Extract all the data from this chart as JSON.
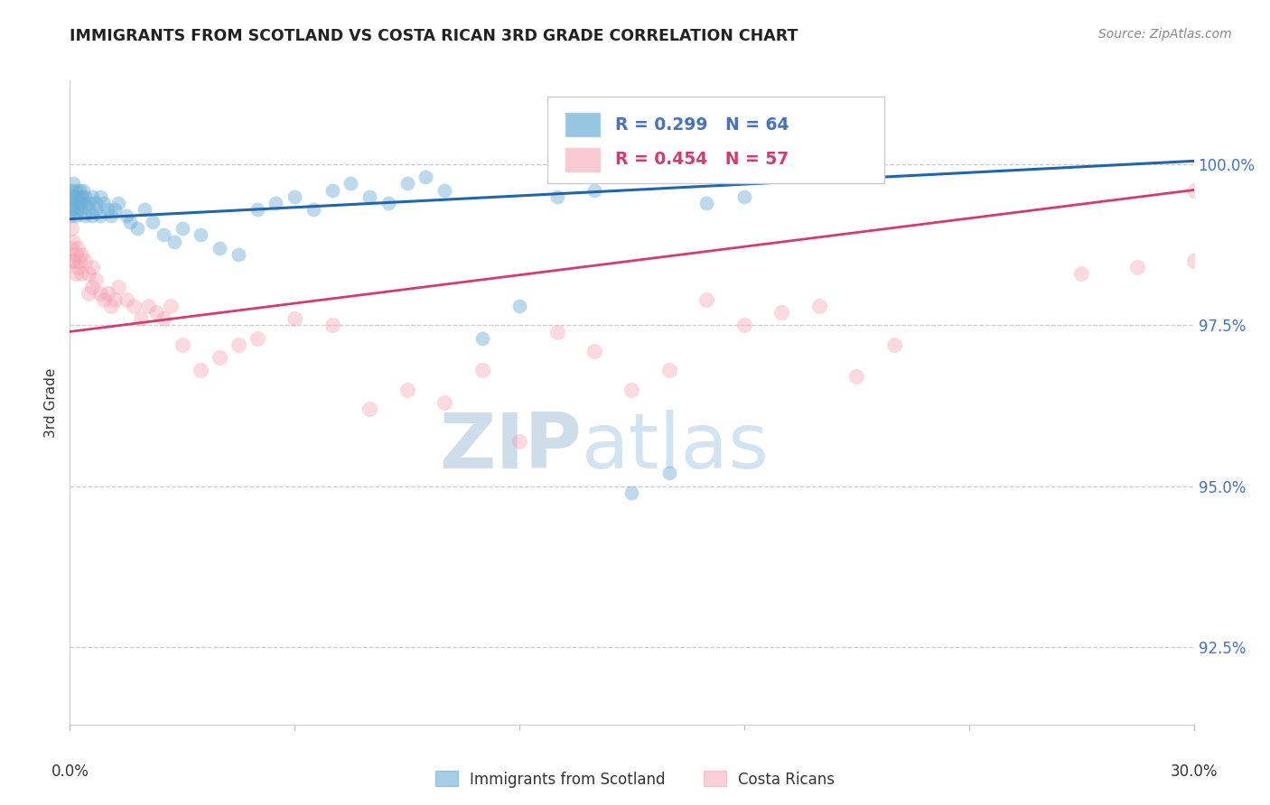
{
  "title": "IMMIGRANTS FROM SCOTLAND VS COSTA RICAN 3RD GRADE CORRELATION CHART",
  "source": "Source: ZipAtlas.com",
  "ylabel": "3rd Grade",
  "yticks": [
    92.5,
    95.0,
    97.5,
    100.0
  ],
  "ytick_labels": [
    "92.5%",
    "95.0%",
    "97.5%",
    "100.0%"
  ],
  "xlim": [
    0.0,
    30.0
  ],
  "ylim": [
    91.3,
    101.3
  ],
  "legend_blue_label": "Immigrants from Scotland",
  "legend_pink_label": "Costa Ricans",
  "R_blue": 0.299,
  "N_blue": 64,
  "R_pink": 0.454,
  "N_pink": 57,
  "blue_color": "#6baed6",
  "pink_color": "#f4a0b0",
  "blue_line_color": "#2166ac",
  "pink_line_color": "#d63b6e",
  "blue_line_x": [
    0,
    30
  ],
  "blue_line_y": [
    99.15,
    100.05
  ],
  "pink_line_x": [
    0,
    30
  ],
  "pink_line_y": [
    97.4,
    99.6
  ],
  "blue_x": [
    0.05,
    0.05,
    0.05,
    0.05,
    0.05,
    0.1,
    0.1,
    0.1,
    0.15,
    0.15,
    0.15,
    0.2,
    0.2,
    0.25,
    0.25,
    0.3,
    0.3,
    0.35,
    0.35,
    0.4,
    0.4,
    0.5,
    0.5,
    0.6,
    0.6,
    0.7,
    0.7,
    0.8,
    0.8,
    0.9,
    1.0,
    1.1,
    1.2,
    1.3,
    1.5,
    1.6,
    1.8,
    2.0,
    2.2,
    2.5,
    2.8,
    3.0,
    3.5,
    4.0,
    4.5,
    5.0,
    5.5,
    6.0,
    6.5,
    7.0,
    7.5,
    8.0,
    8.5,
    9.0,
    9.5,
    10.0,
    11.0,
    12.0,
    13.0,
    14.0,
    15.0,
    16.0,
    17.0,
    18.0
  ],
  "blue_y": [
    99.6,
    99.5,
    99.4,
    99.3,
    99.2,
    99.7,
    99.5,
    99.3,
    99.6,
    99.4,
    99.2,
    99.5,
    99.3,
    99.6,
    99.4,
    99.5,
    99.3,
    99.6,
    99.4,
    99.5,
    99.2,
    99.4,
    99.3,
    99.5,
    99.2,
    99.4,
    99.3,
    99.5,
    99.2,
    99.4,
    99.3,
    99.2,
    99.3,
    99.4,
    99.2,
    99.1,
    99.0,
    99.3,
    99.1,
    98.9,
    98.8,
    99.0,
    98.9,
    98.7,
    98.6,
    99.3,
    99.4,
    99.5,
    99.3,
    99.6,
    99.7,
    99.5,
    99.4,
    99.7,
    99.8,
    99.6,
    97.3,
    97.8,
    99.5,
    99.6,
    94.9,
    95.2,
    99.4,
    99.5
  ],
  "pink_x": [
    0.05,
    0.05,
    0.05,
    0.1,
    0.1,
    0.15,
    0.15,
    0.2,
    0.2,
    0.25,
    0.3,
    0.3,
    0.4,
    0.5,
    0.5,
    0.6,
    0.6,
    0.7,
    0.8,
    0.9,
    1.0,
    1.1,
    1.2,
    1.3,
    1.5,
    1.7,
    1.9,
    2.1,
    2.3,
    2.5,
    2.7,
    3.0,
    3.5,
    4.0,
    4.5,
    5.0,
    6.0,
    7.0,
    8.0,
    9.0,
    10.0,
    11.0,
    12.0,
    13.0,
    14.0,
    15.0,
    16.0,
    17.0,
    18.0,
    19.0,
    20.0,
    21.0,
    22.0,
    27.0,
    28.5,
    30.0,
    30.0
  ],
  "pink_y": [
    99.0,
    98.7,
    98.5,
    98.8,
    98.5,
    98.6,
    98.3,
    98.7,
    98.4,
    98.5,
    98.6,
    98.3,
    98.5,
    98.3,
    98.0,
    98.4,
    98.1,
    98.2,
    98.0,
    97.9,
    98.0,
    97.8,
    97.9,
    98.1,
    97.9,
    97.8,
    97.6,
    97.8,
    97.7,
    97.6,
    97.8,
    97.2,
    96.8,
    97.0,
    97.2,
    97.3,
    97.6,
    97.5,
    96.2,
    96.5,
    96.3,
    96.8,
    95.7,
    97.4,
    97.1,
    96.5,
    96.8,
    97.9,
    97.5,
    97.7,
    97.8,
    96.7,
    97.2,
    98.3,
    98.4,
    98.5,
    99.6
  ]
}
